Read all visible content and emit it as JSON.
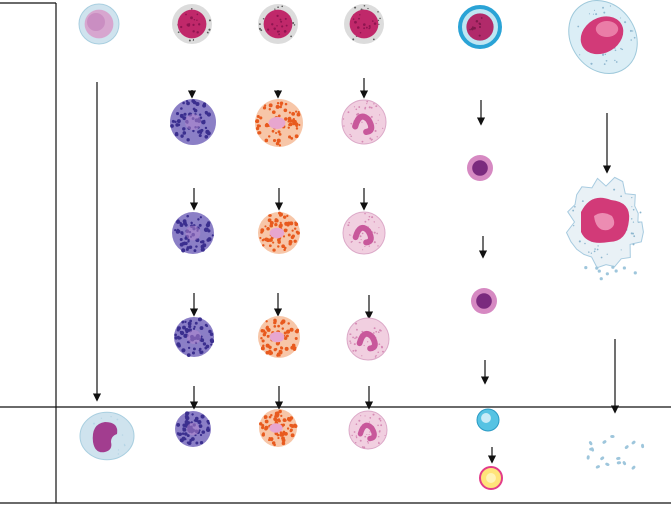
{
  "colors": {
    "line": "#111111",
    "monocyte_cytoplasm": "#cfe3ee",
    "monocyte_nucleus": "#a23d8f",
    "myeloblast_nucleus": "#c0286a",
    "myeloblast_cytoplasm": "#dcdcdc",
    "basophil_granule": "#3b2f8f",
    "basophil_cytoplasm": "#8b7fc6",
    "eosinophil_granule": "#e85a1e",
    "eosinophil_cytoplasm": "#f7c6a8",
    "neutrophil_cytoplasm": "#f1cfe0",
    "neutrophil_nucleus": "#c8589b",
    "proerythroblast_ring": "#2aa3d6",
    "proerythroblast_nucleus": "#b12a6a",
    "erythroblast_nucleus": "#7a2a7e",
    "reticulocyte": "#56c3e3",
    "erythrocyte_fill": "#ffe47a",
    "erythrocyte_ring": "#e23c8a",
    "megakaryocyte_nucleus": "#d23a78",
    "megakaryocyte_cytoplasm": "#e9f1f6",
    "platelet": "#9ec6dc"
  },
  "cells": [
    {
      "id": "monoblast",
      "kind": "monoblast"
    },
    {
      "id": "myeloblast-baso",
      "kind": "myeloblast"
    },
    {
      "id": "myeloblast-eosino",
      "kind": "myeloblast"
    },
    {
      "id": "myeloblast-neutro",
      "kind": "myeloblast"
    },
    {
      "id": "proerythroblast",
      "kind": "proerythroblast"
    },
    {
      "id": "megakaryoblast",
      "kind": "megakaryoblast"
    },
    {
      "id": "basophilic-myelocyte",
      "kind": "basophil"
    },
    {
      "id": "eosinophilic-myelocyte",
      "kind": "eosinophil"
    },
    {
      "id": "neutrophilic-myelocyte",
      "kind": "neutrophil"
    },
    {
      "id": "erythroblast-1",
      "kind": "erythroblast"
    },
    {
      "id": "megakaryocyte",
      "kind": "megakaryocyte"
    },
    {
      "id": "basophilic-metamyelocyte",
      "kind": "basophil"
    },
    {
      "id": "eosinophilic-metamyelocyte",
      "kind": "eosinophil"
    },
    {
      "id": "neutrophilic-metamyelocyte",
      "kind": "neutrophil"
    },
    {
      "id": "erythroblast-2",
      "kind": "erythroblast"
    },
    {
      "id": "basophilic-band",
      "kind": "basophil"
    },
    {
      "id": "eosinophilic-band",
      "kind": "eosinophil"
    },
    {
      "id": "neutrophilic-band",
      "kind": "neutrophil"
    },
    {
      "id": "monocyte",
      "kind": "monocyte"
    },
    {
      "id": "basophil",
      "kind": "basophil"
    },
    {
      "id": "eosinophil",
      "kind": "eosinophil"
    },
    {
      "id": "neutrophil",
      "kind": "neutrophil"
    },
    {
      "id": "reticulocyte",
      "kind": "reticulocyte"
    },
    {
      "id": "erythrocyte",
      "kind": "erythrocyte"
    },
    {
      "id": "platelets",
      "kind": "platelets"
    }
  ]
}
